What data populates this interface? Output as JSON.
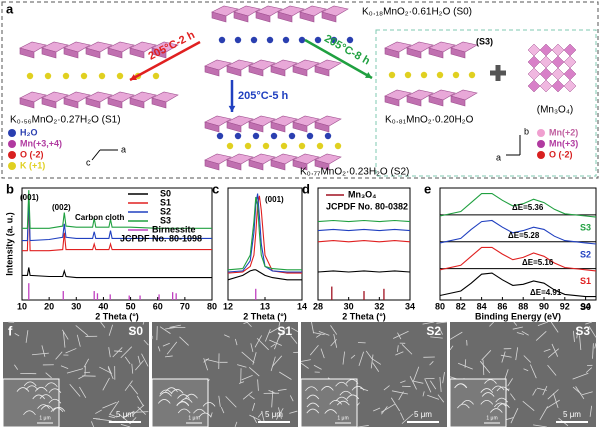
{
  "panel_a": {
    "label": "a",
    "s0": "K₀.₁₈MnO₂·0.61H₂O (S0)",
    "s1": "K₀.₅₆MnO₂·0.27H₂O (S1)",
    "s2": "K₀.₇₇MnO₂·0.23H₂O (S2)",
    "s3_tag": "(S3)",
    "s3": "K₀.₈₁MnO₂·0.20H₂O",
    "mn3o4": "(Mn₃O₄)",
    "arrows": [
      "205°C-2 h",
      "205°C-5 h",
      "205°C-8 h"
    ],
    "legend_left": [
      {
        "label": "H₂O",
        "color": "#2a3fb0"
      },
      {
        "label": "Mn(+3,+4)",
        "color": "#b03aa0"
      },
      {
        "label": "O (-2)",
        "color": "#d82020"
      },
      {
        "label": "K (+1)",
        "color": "#e0d020"
      }
    ],
    "legend_right": [
      {
        "label": "Mn(+2)",
        "color": "#f0a0d0"
      },
      {
        "label": "Mn(+3)",
        "color": "#b03aa0"
      },
      {
        "label": "O (-2)",
        "color": "#d82020"
      }
    ],
    "axes_left": [
      "a",
      "c"
    ],
    "axes_right": [
      "b",
      "a"
    ]
  },
  "chart_data": [
    {
      "panel": "b",
      "type": "line",
      "xlabel": "2 Theta (°)",
      "ylabel": "Intensity (a. u.)",
      "xlim": [
        10,
        80
      ],
      "xticks": [
        10,
        20,
        30,
        40,
        50,
        60,
        70,
        80
      ],
      "ylim": [
        0,
        10
      ],
      "x": [
        10,
        12.0,
        12.5,
        13.0,
        20,
        25.0,
        25.6,
        26.2,
        30,
        36.0,
        36.6,
        37.2,
        42.0,
        42.6,
        43.2,
        50,
        60,
        70,
        80
      ],
      "series": [
        {
          "name": "S0",
          "color": "#000000",
          "values": [
            2.2,
            2.2,
            2.9,
            2.2,
            2.1,
            2.1,
            2.6,
            2.1,
            2.0,
            2.0,
            2.0,
            2.0,
            2.0,
            2.0,
            2.0,
            2.0,
            2.0,
            2.0,
            2.0
          ]
        },
        {
          "name": "S1",
          "color": "#e02020",
          "values": [
            4.4,
            4.4,
            9.0,
            4.4,
            4.4,
            4.5,
            6.0,
            4.5,
            4.5,
            4.5,
            5.0,
            4.5,
            4.5,
            5.0,
            4.5,
            4.5,
            4.5,
            4.5,
            4.5
          ]
        },
        {
          "name": "S2",
          "color": "#2040c0",
          "values": [
            5.3,
            5.3,
            9.3,
            5.3,
            5.4,
            5.6,
            6.8,
            5.6,
            5.5,
            5.5,
            6.1,
            5.5,
            5.5,
            6.2,
            5.5,
            5.5,
            5.5,
            5.5,
            5.5
          ]
        },
        {
          "name": "S3",
          "color": "#20a040",
          "values": [
            6.4,
            6.4,
            9.8,
            6.4,
            6.4,
            6.6,
            7.8,
            6.6,
            6.5,
            6.5,
            7.3,
            6.5,
            6.5,
            7.2,
            6.5,
            6.5,
            6.4,
            6.4,
            6.4
          ]
        }
      ],
      "references": {
        "name": "Birnessite",
        "card": "JCPDF No. 80-1098",
        "color": "#c040c0",
        "x": [
          12.5,
          25.2,
          36.6,
          37.8,
          42.5,
          49.5,
          53.5,
          60.5,
          65.5,
          66.8
        ],
        "values": [
          1.5,
          0.8,
          0.8,
          0.6,
          0.5,
          0.4,
          0.4,
          0.5,
          0.7,
          0.6
        ]
      },
      "annotations": [
        "(001)",
        "(002)",
        "Carbon cloth"
      ]
    },
    {
      "panel": "c",
      "type": "line",
      "xlabel": "2 Theta (°)",
      "xlim": [
        12,
        14
      ],
      "xticks": [
        12,
        13,
        14
      ],
      "ylim": [
        0,
        10
      ],
      "x": [
        12,
        12.4,
        12.6,
        12.7,
        12.75,
        12.8,
        12.85,
        12.9,
        13.0,
        13.2,
        13.6,
        14
      ],
      "series": [
        {
          "name": "S0",
          "color": "#000000",
          "values": [
            1.8,
            2.2,
            2.6,
            2.7,
            2.7,
            2.6,
            2.5,
            2.4,
            2.2,
            2.0,
            1.8,
            1.8
          ]
        },
        {
          "name": "S1",
          "color": "#e02020",
          "values": [
            2.4,
            2.5,
            3,
            4,
            6,
            8.5,
            9.3,
            8,
            4,
            2.6,
            2.4,
            2.4
          ]
        },
        {
          "name": "S2",
          "color": "#2040c0",
          "values": [
            2.5,
            2.6,
            3.5,
            6,
            8.5,
            9.5,
            7.5,
            5,
            3,
            2.6,
            2.5,
            2.5
          ]
        },
        {
          "name": "S3",
          "color": "#20a040",
          "values": [
            2.7,
            2.8,
            4,
            7,
            9.2,
            8.5,
            6,
            4,
            3,
            2.8,
            2.7,
            2.7
          ]
        }
      ],
      "references": {
        "color": "#c040c0",
        "x": [
          12.75
        ],
        "values": [
          1
        ]
      },
      "annotations": [
        "(001)"
      ]
    },
    {
      "panel": "d",
      "type": "line",
      "xlabel": "2 Theta (°)",
      "xlim": [
        28,
        34
      ],
      "xticks": [
        28,
        30,
        32,
        34
      ],
      "ylim": [
        0,
        10
      ],
      "x": [
        28,
        29,
        30,
        31,
        32,
        33,
        34
      ],
      "series": [
        {
          "color": "#000000",
          "values": [
            2.5,
            2.6,
            2.5,
            2.6,
            2.5,
            2.6,
            2.5
          ]
        },
        {
          "color": "#e02020",
          "values": [
            5.2,
            5.3,
            5.2,
            5.3,
            5.2,
            5.3,
            5.2
          ]
        },
        {
          "color": "#2040c0",
          "values": [
            6.2,
            6.3,
            6.2,
            6.3,
            6.2,
            6.3,
            6.2
          ]
        },
        {
          "color": "#20a040",
          "values": [
            7.0,
            7.1,
            7.0,
            7.1,
            7.0,
            7.1,
            7.0
          ]
        }
      ],
      "references": {
        "name": "Mn₃O₄",
        "card": "JCPDF No. 80-0382",
        "color": "#a01020",
        "x": [
          28.9,
          31.0,
          32.3
        ],
        "values": [
          1.2,
          0.8,
          1.0
        ]
      },
      "annotations": []
    },
    {
      "panel": "e",
      "type": "line",
      "xlabel": "Binding Energy (eV)",
      "xlim": [
        80,
        95
      ],
      "xticks": [
        80,
        82,
        84,
        86,
        88,
        90,
        92,
        94
      ],
      "ylim": [
        0,
        10
      ],
      "x": [
        80,
        82,
        83,
        84,
        85,
        86,
        87,
        88,
        89,
        90,
        91,
        92,
        94,
        95
      ],
      "series": [
        {
          "name": "S0",
          "color": "#000000",
          "values": [
            0.4,
            0.8,
            1.5,
            2.3,
            2.4,
            1.8,
            1.3,
            1.4,
            1.7,
            1.5,
            0.9,
            0.5,
            0.3,
            0.3
          ]
        },
        {
          "name": "S1",
          "color": "#e02020",
          "values": [
            2.7,
            3.1,
            3.9,
            4.7,
            4.7,
            4.1,
            3.6,
            3.8,
            4.2,
            3.9,
            3.3,
            2.9,
            2.7,
            2.6
          ]
        },
        {
          "name": "S2",
          "color": "#2040c0",
          "values": [
            5.1,
            5.5,
            6.3,
            7.0,
            7.1,
            6.5,
            6.0,
            6.2,
            6.5,
            6.3,
            5.7,
            5.3,
            5.1,
            5.0
          ]
        },
        {
          "name": "S3",
          "color": "#20a040",
          "values": [
            7.5,
            7.9,
            8.7,
            9.5,
            9.5,
            8.9,
            8.4,
            8.6,
            9.0,
            8.7,
            8.1,
            7.7,
            7.5,
            7.4
          ]
        }
      ],
      "annotations": [
        "ΔE=4.91",
        "ΔE=5.16",
        "ΔE=5.28",
        "ΔE=5.36"
      ]
    }
  ],
  "panel_f": {
    "label": "f",
    "samples": [
      "S0",
      "S1",
      "S2",
      "S3"
    ],
    "scale_main": [
      "5 μm",
      "5 μm",
      "5 μm",
      "5 μm"
    ],
    "scale_inset": [
      "1 μm",
      "1 μm",
      "1 μm",
      "1 μm"
    ]
  }
}
